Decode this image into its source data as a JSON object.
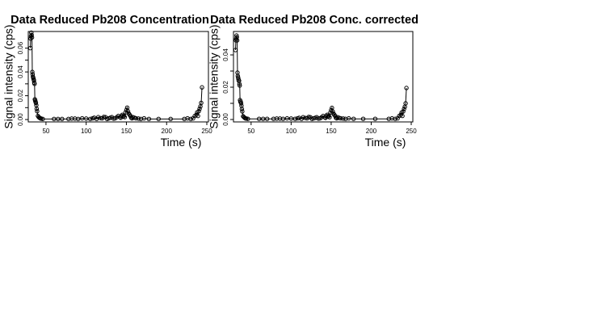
{
  "chart_data": [
    {
      "type": "scatter",
      "title": "Data Reduced Pb208 Concentration",
      "xlabel": "Time (s)",
      "ylabel": "Signal intensity (cps)",
      "xlim": [
        28,
        252
      ],
      "ylim": [
        -0.002,
        0.074
      ],
      "xticks": [
        50,
        100,
        150,
        200,
        250
      ],
      "yticks": [
        0.0,
        0.01,
        0.02,
        0.03,
        0.04,
        0.05,
        0.06
      ],
      "ytick_labels": [
        "0.00",
        "",
        "0.02",
        "",
        "0.04",
        "",
        "0.06"
      ],
      "grid": false,
      "legend": "none",
      "series": [
        {
          "x": [
            30.5,
            31.0,
            31.4,
            31.8,
            32.2,
            32.6,
            33.0,
            33.4,
            33.8,
            34.2,
            34.6,
            35.0,
            35.4,
            35.8,
            36.2,
            36.6,
            37.0,
            37.5,
            38.0,
            38.5,
            39.0,
            40.0,
            41.0,
            42.0,
            43.0,
            44.0,
            46.0,
            60.0,
            65.0,
            70.0,
            78.0,
            82.0,
            86.0,
            90.0,
            95.0,
            100.0,
            105.0,
            108.0,
            110.0,
            113.0,
            115.0,
            118.0,
            120.0,
            122.0,
            124.0,
            126.0,
            128.0,
            130.0,
            132.0,
            134.0,
            136.0,
            138.0,
            140.0,
            142.0,
            143.0,
            144.0,
            145.0,
            146.0,
            147.0,
            148.0,
            149.0,
            150.0,
            151.0,
            152.0,
            153.0,
            154.0,
            155.0,
            156.0,
            157.0,
            158.0,
            160.0,
            162.0,
            165.0,
            168.0,
            172.0,
            178.0,
            190.0,
            205.0,
            222.0,
            226.0,
            230.0,
            233.0,
            235.0,
            237.0,
            238.0,
            239.0,
            240.0,
            241.0,
            242.0,
            243.0,
            244.0
          ],
          "y": [
            0.06,
            0.068,
            0.07,
            0.073,
            0.071,
            0.069,
            0.04,
            0.038,
            0.036,
            0.035,
            0.034,
            0.033,
            0.031,
            0.03,
            0.017,
            0.016,
            0.015,
            0.014,
            0.012,
            0.009,
            0.007,
            0.003,
            0.002,
            0.0015,
            0.001,
            0.0008,
            0.0005,
            0.0005,
            0.0005,
            0.0005,
            0.0005,
            0.0008,
            0.0008,
            0.0005,
            0.001,
            0.0008,
            0.0005,
            0.001,
            0.0015,
            0.0005,
            0.002,
            0.0012,
            0.001,
            0.0022,
            0.002,
            0.0005,
            0.001,
            0.0015,
            0.002,
            0.0008,
            0.001,
            0.002,
            0.003,
            0.002,
            0.0015,
            0.003,
            0.004,
            0.0025,
            0.003,
            0.002,
            0.006,
            0.008,
            0.01,
            0.007,
            0.005,
            0.004,
            0.003,
            0.0015,
            0.001,
            0.002,
            0.0015,
            0.001,
            0.0008,
            0.0005,
            0.001,
            0.0005,
            0.0005,
            0.0005,
            0.0005,
            0.001,
            0.0005,
            0.001,
            0.003,
            0.004,
            0.006,
            0.003,
            0.007,
            0.009,
            0.011,
            0.014,
            0.027
          ]
        }
      ]
    },
    {
      "type": "scatter",
      "title": "Data Reduced Pb208 Conc. corrected",
      "xlabel": "Time (s)",
      "ylabel": "Signal intensity (cps)",
      "xlim": [
        28,
        252
      ],
      "ylim": [
        -0.0015,
        0.0545
      ],
      "xticks": [
        50,
        100,
        150,
        200,
        250
      ],
      "yticks": [
        0.0,
        0.01,
        0.02,
        0.03,
        0.04
      ],
      "ytick_labels": [
        "0.00",
        "",
        "0.02",
        "",
        "0.04"
      ],
      "grid": false,
      "legend": "none",
      "series": [
        {
          "x": [
            30.5,
            31.0,
            31.4,
            31.8,
            32.2,
            32.6,
            33.0,
            33.4,
            33.8,
            34.2,
            34.6,
            35.0,
            35.4,
            35.8,
            36.2,
            36.6,
            37.0,
            37.5,
            38.0,
            38.5,
            39.0,
            40.0,
            41.0,
            42.0,
            43.0,
            44.0,
            46.0,
            60.0,
            65.0,
            70.0,
            78.0,
            82.0,
            86.0,
            90.0,
            95.0,
            100.0,
            105.0,
            108.0,
            110.0,
            113.0,
            115.0,
            118.0,
            120.0,
            122.0,
            124.0,
            126.0,
            128.0,
            130.0,
            132.0,
            134.0,
            136.0,
            138.0,
            140.0,
            142.0,
            143.0,
            144.0,
            145.0,
            146.0,
            147.0,
            148.0,
            149.0,
            150.0,
            151.0,
            152.0,
            153.0,
            154.0,
            155.0,
            156.0,
            157.0,
            158.0,
            160.0,
            162.0,
            165.0,
            168.0,
            172.0,
            178.0,
            190.0,
            205.0,
            222.0,
            226.0,
            230.0,
            233.0,
            235.0,
            237.0,
            238.0,
            239.0,
            240.0,
            241.0,
            242.0,
            243.0,
            244.0
          ],
          "y": [
            0.043,
            0.049,
            0.05,
            0.052,
            0.051,
            0.049,
            0.029,
            0.027,
            0.026,
            0.025,
            0.024,
            0.024,
            0.022,
            0.021,
            0.012,
            0.011,
            0.011,
            0.01,
            0.0085,
            0.0065,
            0.005,
            0.002,
            0.0015,
            0.001,
            0.0007,
            0.0006,
            0.0004,
            0.0004,
            0.0004,
            0.0004,
            0.0004,
            0.0006,
            0.0006,
            0.0004,
            0.0007,
            0.0006,
            0.0004,
            0.0007,
            0.001,
            0.0004,
            0.0014,
            0.0009,
            0.0007,
            0.0016,
            0.0014,
            0.0004,
            0.0007,
            0.001,
            0.0014,
            0.0006,
            0.0007,
            0.0014,
            0.0022,
            0.0014,
            0.001,
            0.0022,
            0.0029,
            0.0018,
            0.0022,
            0.0014,
            0.0043,
            0.0058,
            0.0072,
            0.005,
            0.0036,
            0.0029,
            0.0022,
            0.001,
            0.0007,
            0.0014,
            0.001,
            0.0007,
            0.0006,
            0.0004,
            0.0007,
            0.0004,
            0.0004,
            0.0004,
            0.0004,
            0.0007,
            0.0004,
            0.0007,
            0.0022,
            0.0029,
            0.0043,
            0.0022,
            0.005,
            0.0065,
            0.0079,
            0.01,
            0.0195
          ]
        }
      ]
    }
  ]
}
